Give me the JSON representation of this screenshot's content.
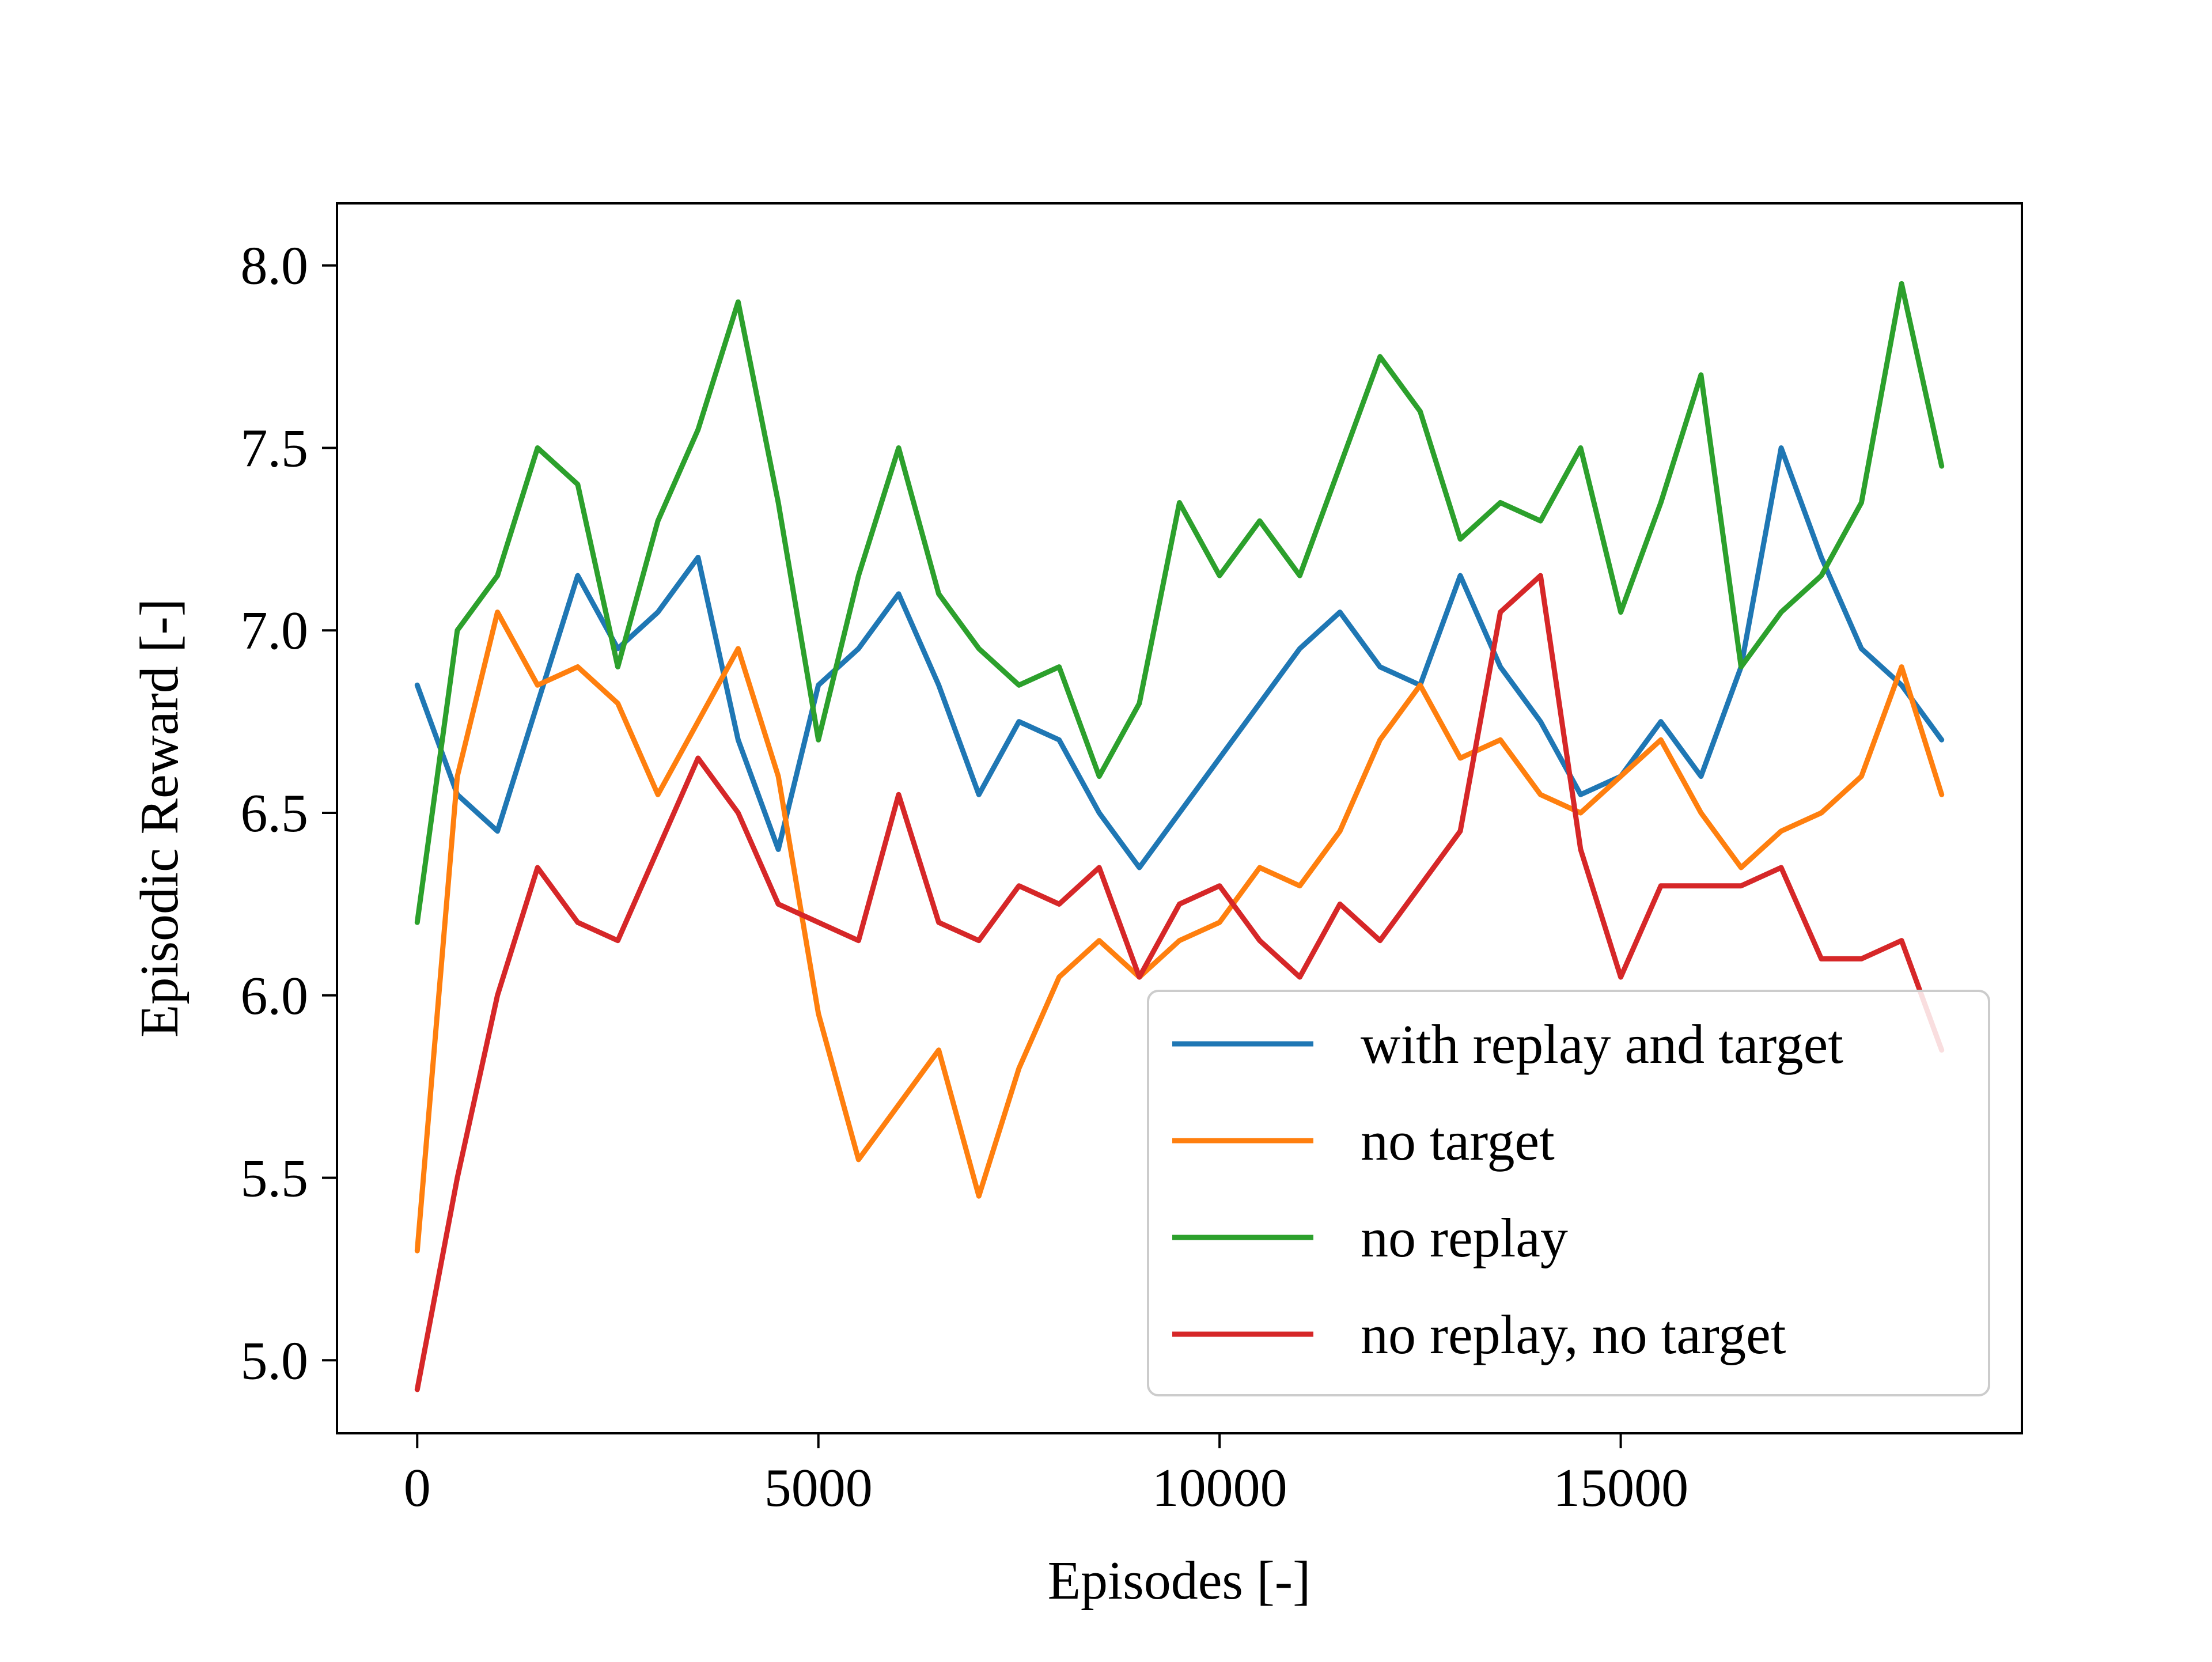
{
  "chart_data": {
    "type": "line",
    "title": "",
    "xlabel": "Episodes [-]",
    "ylabel": "Episodic Reward [-]",
    "xlim": [
      -1000,
      20000
    ],
    "ylim": [
      4.8,
      8.17
    ],
    "xticks": [
      0,
      5000,
      10000,
      15000
    ],
    "xtick_labels": [
      "0",
      "5000",
      "10000",
      "15000"
    ],
    "yticks": [
      5.0,
      5.5,
      6.0,
      6.5,
      7.0,
      7.5,
      8.0
    ],
    "ytick_labels": [
      "5.0",
      "5.5",
      "6.0",
      "6.5",
      "7.0",
      "7.5",
      "8.0"
    ],
    "grid": false,
    "legend_position": "lower-right",
    "x": [
      0,
      500,
      1000,
      1500,
      2000,
      2500,
      3000,
      3500,
      4000,
      4500,
      5000,
      5500,
      6000,
      6500,
      7000,
      7500,
      8000,
      8500,
      9000,
      9500,
      10000,
      10500,
      11000,
      11500,
      12000,
      12500,
      13000,
      13500,
      14000,
      14500,
      15000,
      15500,
      16000,
      16500,
      17000,
      17500,
      18000,
      18500,
      19000
    ],
    "series": [
      {
        "name": "with replay and target",
        "color": "#1f77b4",
        "values": [
          6.85,
          6.55,
          6.45,
          6.8,
          7.15,
          6.95,
          7.05,
          7.2,
          6.7,
          6.4,
          6.85,
          6.95,
          7.1,
          6.85,
          6.55,
          6.75,
          6.7,
          6.5,
          6.35,
          6.5,
          6.65,
          6.8,
          6.95,
          7.05,
          6.9,
          6.85,
          7.15,
          6.9,
          6.75,
          6.55,
          6.6,
          6.75,
          6.6,
          6.9,
          7.5,
          7.2,
          6.95,
          6.85,
          6.7
        ]
      },
      {
        "name": "no target",
        "color": "#ff7f0e",
        "values": [
          5.3,
          6.6,
          7.05,
          6.85,
          6.9,
          6.8,
          6.55,
          6.75,
          6.95,
          6.6,
          5.95,
          5.55,
          5.7,
          5.85,
          5.45,
          5.8,
          6.05,
          6.15,
          6.05,
          6.15,
          6.2,
          6.35,
          6.3,
          6.45,
          6.7,
          6.85,
          6.65,
          6.7,
          6.55,
          6.5,
          6.6,
          6.7,
          6.5,
          6.35,
          6.45,
          6.5,
          6.6,
          6.9,
          6.55
        ]
      },
      {
        "name": "no replay",
        "color": "#2ca02c",
        "values": [
          6.2,
          7.0,
          7.15,
          7.5,
          7.4,
          6.9,
          7.3,
          7.55,
          7.9,
          7.35,
          6.7,
          7.15,
          7.5,
          7.1,
          6.95,
          6.85,
          6.9,
          6.6,
          6.8,
          7.35,
          7.15,
          7.3,
          7.15,
          7.45,
          7.75,
          7.6,
          7.25,
          7.35,
          7.3,
          7.5,
          7.05,
          7.35,
          7.7,
          6.9,
          7.05,
          7.15,
          7.35,
          7.95,
          7.45
        ]
      },
      {
        "name": "no replay, no target",
        "color": "#d62728",
        "values": [
          4.92,
          5.5,
          6.0,
          6.35,
          6.2,
          6.15,
          6.4,
          6.65,
          6.5,
          6.25,
          6.2,
          6.15,
          6.55,
          6.2,
          6.15,
          6.3,
          6.25,
          6.35,
          6.05,
          6.25,
          6.3,
          6.15,
          6.05,
          6.25,
          6.15,
          6.3,
          6.45,
          7.05,
          7.15,
          6.4,
          6.05,
          6.3,
          6.3,
          6.3,
          6.35,
          6.1,
          6.1,
          6.15,
          5.85
        ]
      }
    ]
  }
}
